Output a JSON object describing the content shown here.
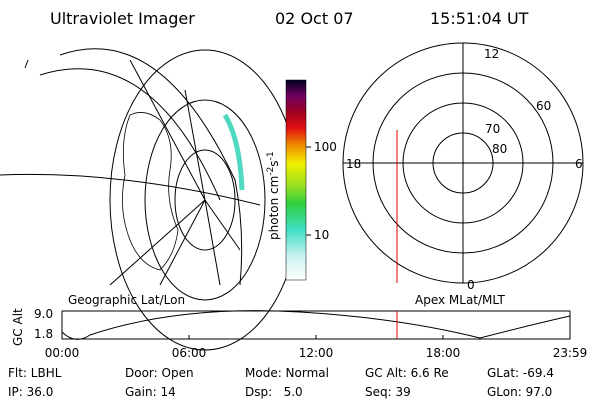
{
  "header": {
    "instrument": "Ultraviolet Imager",
    "date": "02 Oct 07",
    "time": "15:51:04 UT"
  },
  "colorbar": {
    "label": "photon cm",
    "exponent1": "-2",
    "unit2": "s",
    "exponent2": "-1",
    "ticks": [
      "100",
      "10"
    ]
  },
  "polar": {
    "labels": [
      "12",
      "18",
      "6",
      "0",
      "80",
      "70",
      "60"
    ]
  },
  "altitude_plot": {
    "left_title": "Geographic Lat/Lon",
    "right_title": "Apex MLat/MLT",
    "y_label": "GC Alt",
    "y_ticks": [
      "9.0",
      "1.8"
    ],
    "x_ticks": [
      "00:00",
      "06:00",
      "12:00",
      "18:00",
      "23:59"
    ]
  },
  "footer": {
    "rows": [
      [
        "Flt: LBHL",
        "Door: Open",
        "Mode: Normal",
        "GC Alt: 6.6 Re",
        "GLat: -69.4"
      ],
      [
        "IP: 36.0",
        "Gain: 14",
        "Dsp:   5.0",
        "Seq: 39",
        "GLon: 97.0"
      ]
    ]
  }
}
